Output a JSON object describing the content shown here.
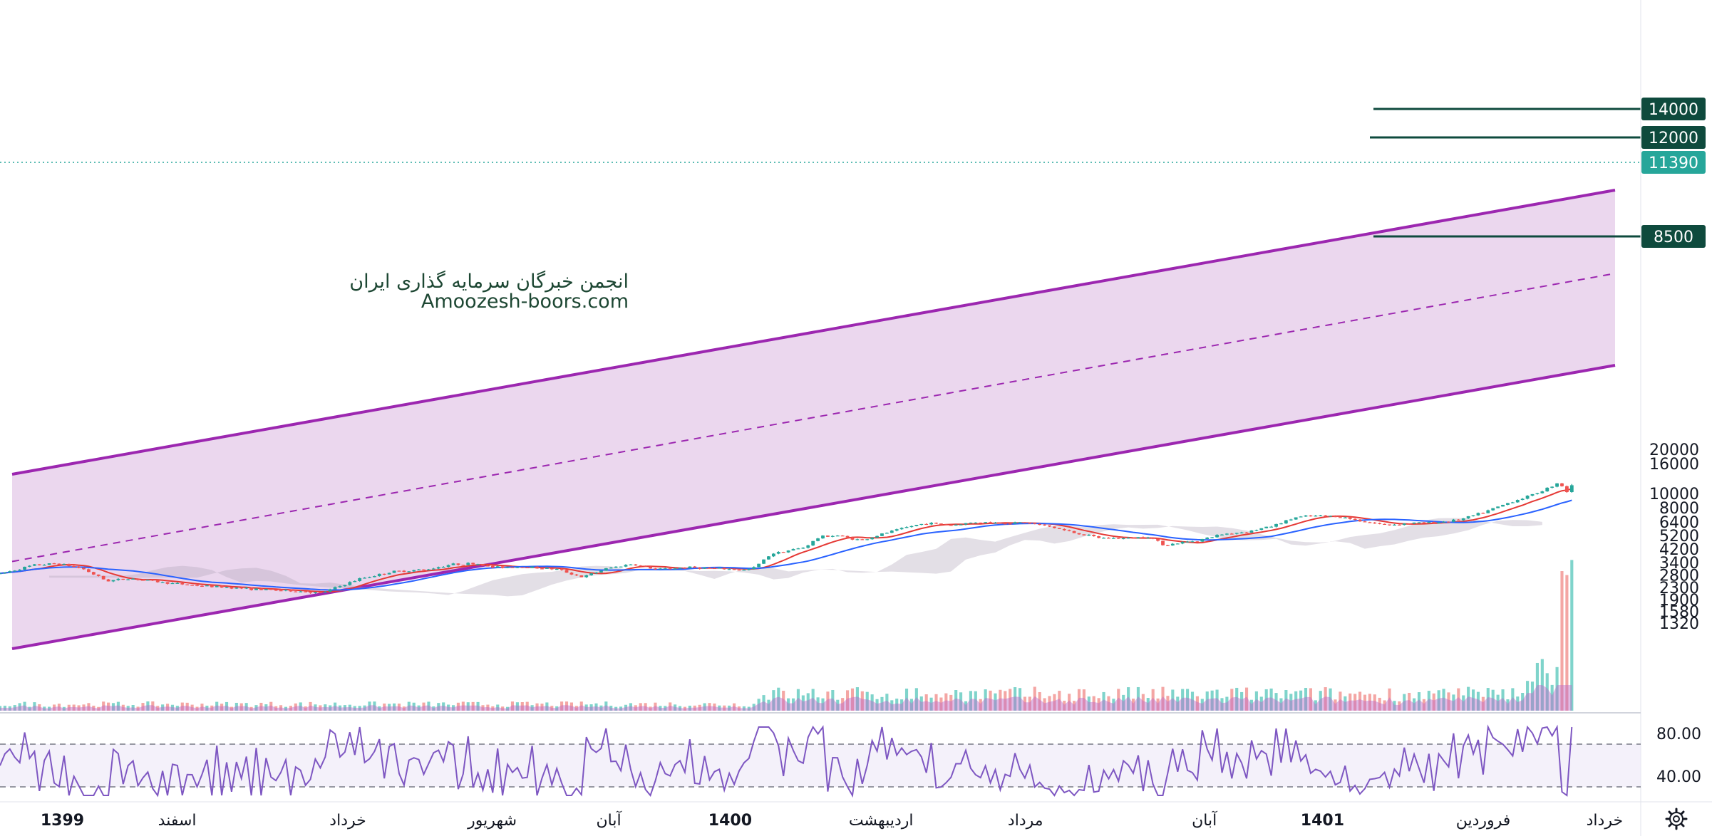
{
  "watermark": {
    "line1": "انجمن خبرگان سرمایه گذاری ایران",
    "line2": "Amoozesh-boors.com"
  },
  "colors": {
    "channel_line": "#9c27b0",
    "channel_fill": "#e9d3ec",
    "candle_up": "#26a69a",
    "candle_down": "#ef5350",
    "ma_fast": "#e53935",
    "ma_slow": "#2962ff",
    "level_line": "#0e4a3d",
    "last_price": "#26a69a",
    "rsi_line": "#7e57c2",
    "volume_ma_fill": "#ba68c8"
  },
  "chart_data": {
    "type": "candlestick",
    "price_scale": "log",
    "y_ticks": [
      "20000",
      "16000",
      "10000",
      "8000",
      "6400",
      "5200",
      "4200",
      "3400",
      "2800",
      "2300",
      "1900",
      "1580",
      "1320"
    ],
    "x_labels": [
      {
        "label": "1399",
        "bold": true,
        "pos": 0.038
      },
      {
        "label": "اسفند",
        "bold": false,
        "pos": 0.108
      },
      {
        "label": "خرداد",
        "bold": false,
        "pos": 0.212
      },
      {
        "label": "شهریور",
        "bold": false,
        "pos": 0.3
      },
      {
        "label": "آبان",
        "bold": false,
        "pos": 0.371
      },
      {
        "label": "1400",
        "bold": true,
        "pos": 0.445
      },
      {
        "label": "اردیبهشت",
        "bold": false,
        "pos": 0.537
      },
      {
        "label": "مرداد",
        "bold": false,
        "pos": 0.625
      },
      {
        "label": "آبان",
        "bold": false,
        "pos": 0.734
      },
      {
        "label": "1401",
        "bold": true,
        "pos": 0.806
      },
      {
        "label": "فروردین",
        "bold": false,
        "pos": 0.904
      },
      {
        "label": "خرداد",
        "bold": false,
        "pos": 0.978
      }
    ],
    "price_path": [
      [
        0.0,
        2850
      ],
      [
        0.02,
        3250
      ],
      [
        0.035,
        3350
      ],
      [
        0.05,
        3100
      ],
      [
        0.065,
        2550
      ],
      [
        0.08,
        2650
      ],
      [
        0.1,
        2480
      ],
      [
        0.12,
        2370
      ],
      [
        0.14,
        2300
      ],
      [
        0.16,
        2220
      ],
      [
        0.18,
        2180
      ],
      [
        0.195,
        2100
      ],
      [
        0.205,
        2300
      ],
      [
        0.22,
        2650
      ],
      [
        0.24,
        2950
      ],
      [
        0.26,
        3050
      ],
      [
        0.275,
        3300
      ],
      [
        0.29,
        3350
      ],
      [
        0.3,
        3150
      ],
      [
        0.32,
        3180
      ],
      [
        0.34,
        3050
      ],
      [
        0.355,
        2700
      ],
      [
        0.37,
        3100
      ],
      [
        0.385,
        3320
      ],
      [
        0.4,
        3050
      ],
      [
        0.42,
        3150
      ],
      [
        0.44,
        3080
      ],
      [
        0.455,
        3020
      ],
      [
        0.46,
        3150
      ],
      [
        0.47,
        3900
      ],
      [
        0.49,
        4300
      ],
      [
        0.5,
        5100
      ],
      [
        0.51,
        5200
      ],
      [
        0.525,
        4800
      ],
      [
        0.54,
        5400
      ],
      [
        0.555,
        6000
      ],
      [
        0.565,
        6300
      ],
      [
        0.58,
        6100
      ],
      [
        0.595,
        6400
      ],
      [
        0.61,
        6300
      ],
      [
        0.625,
        6350
      ],
      [
        0.64,
        5950
      ],
      [
        0.655,
        5400
      ],
      [
        0.67,
        5000
      ],
      [
        0.685,
        4950
      ],
      [
        0.7,
        5100
      ],
      [
        0.71,
        4450
      ],
      [
        0.72,
        4650
      ],
      [
        0.73,
        4800
      ],
      [
        0.745,
        5300
      ],
      [
        0.76,
        5500
      ],
      [
        0.775,
        6000
      ],
      [
        0.79,
        6900
      ],
      [
        0.8,
        7050
      ],
      [
        0.815,
        7000
      ],
      [
        0.83,
        6500
      ],
      [
        0.845,
        6100
      ],
      [
        0.86,
        6300
      ],
      [
        0.875,
        6350
      ],
      [
        0.89,
        6650
      ],
      [
        0.905,
        7500
      ],
      [
        0.92,
        8700
      ],
      [
        0.935,
        9900
      ],
      [
        0.945,
        11100
      ],
      [
        0.95,
        12000
      ],
      [
        0.955,
        10300
      ],
      [
        0.958,
        11390
      ]
    ],
    "horizontal_levels": [
      {
        "value": "14000"
      },
      {
        "value": "12000"
      },
      {
        "value": "8500"
      }
    ],
    "last_price": "11390",
    "rsi_ticks": [
      "80.00",
      "40.00"
    ]
  }
}
